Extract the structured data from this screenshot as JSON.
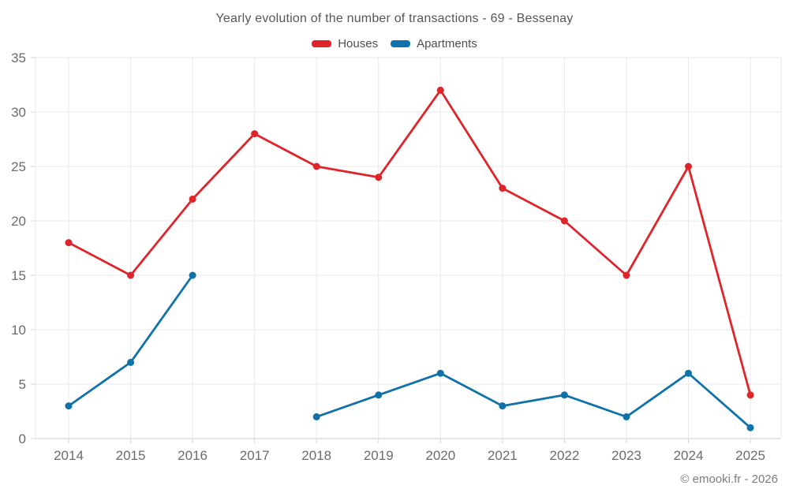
{
  "header": {
    "title": "Yearly evolution of the number of transactions - 69 - Bessenay"
  },
  "legend": {
    "items": [
      {
        "label": "Houses",
        "color": "#e0252a"
      },
      {
        "label": "Apartments",
        "color": "#1072aa"
      }
    ]
  },
  "footer": {
    "credit": "© emooki.fr - 2026"
  },
  "chart_data": {
    "type": "line",
    "title": "Yearly evolution of the number of transactions - 69 - Bessenay",
    "xlabel": "",
    "ylabel": "",
    "categories": [
      "2014",
      "2015",
      "2016",
      "2017",
      "2018",
      "2019",
      "2020",
      "2021",
      "2022",
      "2023",
      "2024",
      "2025"
    ],
    "series": [
      {
        "name": "Houses",
        "color": "#e0252a",
        "values": [
          18,
          15,
          22,
          28,
          25,
          24,
          32,
          23,
          20,
          15,
          25,
          4
        ]
      },
      {
        "name": "Apartments",
        "color": "#1072aa",
        "values": [
          3,
          7,
          15,
          null,
          2,
          4,
          6,
          3,
          4,
          2,
          6,
          1
        ]
      }
    ],
    "ylim": [
      0,
      35
    ],
    "yticks": [
      0,
      5,
      10,
      15,
      20,
      25,
      30,
      35
    ],
    "grid": true,
    "legend_position": "top",
    "colors": {
      "grid_line": "#e9e9e9",
      "axis_line": "#cccccc",
      "tick_mark": "#d6d6d6",
      "tick_label": "#6b6b6b"
    }
  }
}
